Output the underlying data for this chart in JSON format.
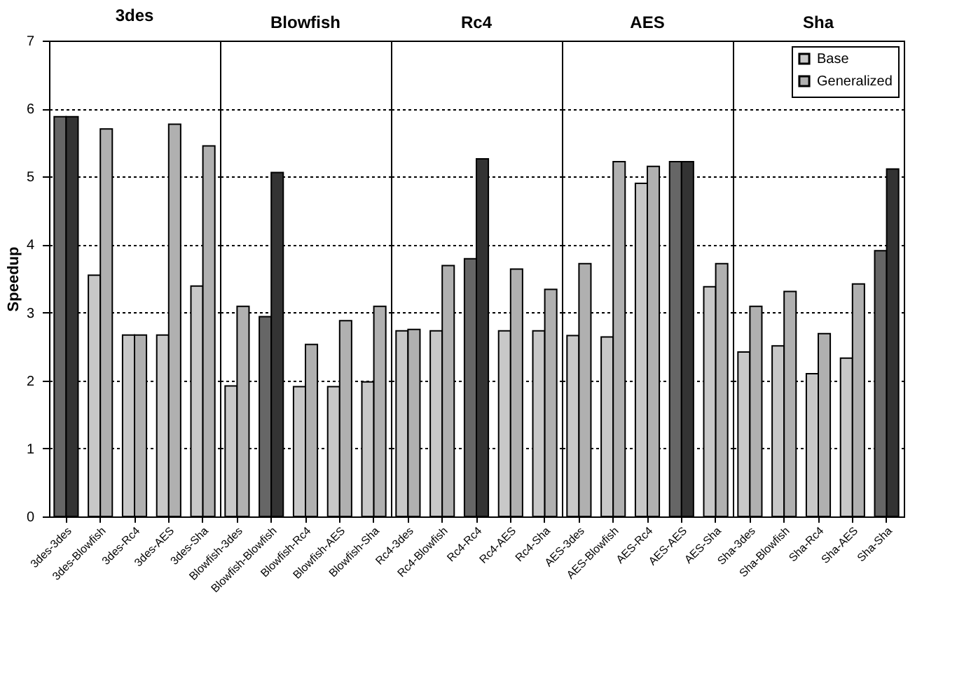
{
  "chart_data": [
    {
      "type": "bar",
      "title": "3des",
      "ylabel": "Speedup",
      "categories": [
        "3des-3des",
        "3des-Blowfish",
        "3des-Rc4",
        "3des-AES",
        "3des-Sha"
      ],
      "ylim": [
        0,
        7
      ],
      "yticks": [
        0,
        1,
        2,
        3,
        4,
        5,
        6,
        7
      ],
      "grid": "y",
      "series": [
        {
          "color": "#c8c8c8",
          "colors": [
            "#666666",
            "#c8c8c8",
            "#c8c8c8",
            "#c8c8c8",
            "#c8c8c8"
          ],
          "values": [
            5.88,
            3.55,
            2.67,
            2.67,
            3.39
          ]
        },
        {
          "color": "#b0b0b0",
          "colors": [
            "#333333",
            "#b0b0b0",
            "#b0b0b0",
            "#b0b0b0",
            "#b0b0b0"
          ],
          "values": [
            5.88,
            5.7,
            2.67,
            5.77,
            5.45
          ]
        }
      ]
    },
    {
      "type": "bar",
      "title": "Blowfish",
      "categories": [
        "Blowfish-3des",
        "Blowfish-Blowfish",
        "Blowfish-Rc4",
        "Blowfish-AES",
        "Blowfish-Sha"
      ],
      "ylim": [
        0,
        7
      ],
      "yticks": [
        0,
        1,
        2,
        3,
        4,
        5,
        6,
        7
      ],
      "grid": "y",
      "tick_labels": "x",
      "series": [
        {
          "color": "#c8c8c8",
          "colors": [
            "#c8c8c8",
            "#666666",
            "#c8c8c8",
            "#c8c8c8",
            "#c8c8c8"
          ],
          "values": [
            1.92,
            2.94,
            1.91,
            1.91,
            1.98
          ]
        },
        {
          "color": "#b0b0b0",
          "colors": [
            "#b0b0b0",
            "#333333",
            "#b0b0b0",
            "#b0b0b0",
            "#b0b0b0"
          ],
          "values": [
            3.09,
            5.06,
            2.53,
            2.88,
            3.09
          ]
        }
      ]
    },
    {
      "type": "bar",
      "title": "Rc4",
      "categories": [
        "Rc4-3des",
        "Rc4-Blowfish",
        "Rc4-Rc4",
        "Rc4-AES",
        "Rc4-Sha"
      ],
      "ylim": [
        0,
        7
      ],
      "yticks": [
        0,
        1,
        2,
        3,
        4,
        5,
        6,
        7
      ],
      "grid": "y",
      "tick_labels": "x",
      "series": [
        {
          "color": "#c8c8c8",
          "colors": [
            "#c8c8c8",
            "#c8c8c8",
            "#666666",
            "#c8c8c8",
            "#c8c8c8"
          ],
          "values": [
            2.73,
            2.73,
            3.79,
            2.73,
            2.73
          ]
        },
        {
          "color": "#b0b0b0",
          "colors": [
            "#b0b0b0",
            "#b0b0b0",
            "#333333",
            "#b0b0b0",
            "#b0b0b0"
          ],
          "values": [
            2.75,
            3.69,
            5.26,
            3.64,
            3.34
          ]
        }
      ]
    },
    {
      "type": "bar",
      "title": "AES",
      "categories": [
        "AES-3des",
        "AES-Blowfish",
        "AES-Rc4",
        "AES-AES",
        "AES-Sha"
      ],
      "ylim": [
        0,
        7
      ],
      "yticks": [
        0,
        1,
        2,
        3,
        4,
        5,
        6,
        7
      ],
      "grid": "y",
      "tick_labels": "x",
      "series": [
        {
          "color": "#c8c8c8",
          "colors": [
            "#c8c8c8",
            "#c8c8c8",
            "#c8c8c8",
            "#666666",
            "#c8c8c8"
          ],
          "values": [
            2.66,
            2.64,
            4.9,
            5.22,
            3.38
          ]
        },
        {
          "color": "#b0b0b0",
          "colors": [
            "#b0b0b0",
            "#b0b0b0",
            "#b0b0b0",
            "#333333",
            "#b0b0b0"
          ],
          "values": [
            3.72,
            5.22,
            5.15,
            5.22,
            3.72
          ]
        }
      ]
    },
    {
      "type": "bar",
      "title": "Sha",
      "categories": [
        "Sha-3des",
        "Sha-Blowfish",
        "Sha-Rc4",
        "Sha-AES",
        "Sha-Sha"
      ],
      "ylim": [
        0,
        7
      ],
      "yticks": [
        0,
        1,
        2,
        3,
        4,
        5,
        6,
        7
      ],
      "grid": "y",
      "tick_labels": "x",
      "legend": "top right",
      "series": [
        {
          "name": "Base",
          "color": "#c8c8c8",
          "colors": [
            "#c8c8c8",
            "#c8c8c8",
            "#c8c8c8",
            "#c8c8c8",
            "#666666"
          ],
          "values": [
            2.42,
            2.51,
            2.1,
            2.33,
            3.91
          ]
        },
        {
          "name": "Generalized",
          "color": "#b0b0b0",
          "colors": [
            "#b0b0b0",
            "#b0b0b0",
            "#b0b0b0",
            "#b0b0b0",
            "#333333"
          ],
          "values": [
            3.09,
            3.31,
            2.69,
            3.42,
            5.11
          ]
        }
      ]
    }
  ]
}
